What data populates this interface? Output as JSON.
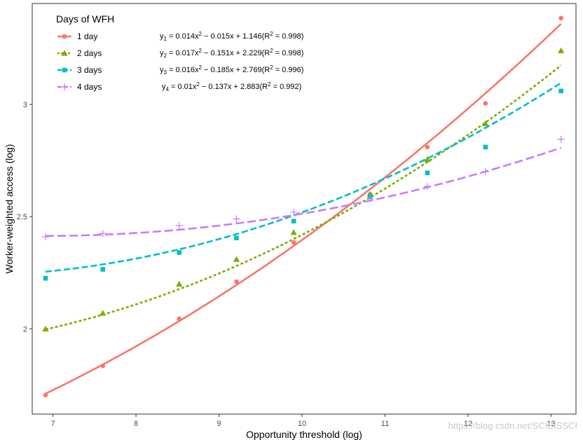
{
  "chart_data": {
    "type": "scatter",
    "title": "",
    "xlabel": "Opportunity threshold (log)",
    "ylabel": "Worker-weighted access (log)",
    "xlim": [
      6.75,
      13.3
    ],
    "ylim": [
      1.62,
      3.45
    ],
    "x_ticks": [
      7,
      8,
      9,
      10,
      11,
      12,
      13
    ],
    "y_ticks": [
      2,
      2.5,
      3
    ],
    "grid": false,
    "legend_title": "Days of WFH",
    "legend_position": "top-left",
    "x": [
      6.91,
      7.6,
      8.52,
      9.21,
      9.9,
      10.82,
      11.51,
      12.21,
      13.12
    ],
    "series": [
      {
        "name": "1 day",
        "color": "#F8766D",
        "marker": "circle",
        "line_style": "solid",
        "values": [
          1.705,
          1.835,
          2.045,
          2.21,
          2.385,
          2.6,
          2.81,
          3.005,
          3.385
        ],
        "fit": {
          "a": 0.014,
          "b": -0.015,
          "c": 1.146,
          "r2": 0.998,
          "label": "y",
          "sub": "1"
        }
      },
      {
        "name": "2 days",
        "color": "#7CAE00",
        "marker": "triangle",
        "line_style": "dotted",
        "values": [
          2.0,
          2.07,
          2.2,
          2.31,
          2.43,
          2.6,
          2.755,
          2.915,
          3.24
        ],
        "fit": {
          "a": 0.017,
          "b": -0.151,
          "c": 2.229,
          "r2": 0.998,
          "label": "y",
          "sub": "2"
        }
      },
      {
        "name": "3 days",
        "color": "#00BFC4",
        "marker": "square",
        "line_style": "dashed",
        "values": [
          2.225,
          2.265,
          2.34,
          2.405,
          2.48,
          2.59,
          2.695,
          2.81,
          3.06
        ],
        "fit": {
          "a": 0.016,
          "b": -0.185,
          "c": 2.769,
          "r2": 0.996,
          "label": "y",
          "sub": "3"
        }
      },
      {
        "name": "4 days",
        "color": "#C77CFF",
        "marker": "plus",
        "line_style": "longdash",
        "values": [
          2.41,
          2.425,
          2.46,
          2.49,
          2.52,
          2.58,
          2.635,
          2.7,
          2.845
        ],
        "fit": {
          "a": 0.01,
          "b": -0.137,
          "c": 2.883,
          "r2": 0.992,
          "label": "y",
          "sub": "4"
        }
      }
    ],
    "equations": [
      {
        "label": "y",
        "sub": "1",
        "body": " = 0.014x",
        "sup": "2",
        "rest": " − 0.015x + 1.146(R",
        "sup2": "2",
        "tail": " = 0.998)"
      },
      {
        "label": "y",
        "sub": "2",
        "body": " = 0.017x",
        "sup": "2",
        "rest": " − 0.151x + 2.229(R",
        "sup2": "2",
        "tail": " = 0.998)"
      },
      {
        "label": "y",
        "sub": "3",
        "body": " = 0.016x",
        "sup": "2",
        "rest": " − 0.185x + 2.769(R",
        "sup2": "2",
        "tail": " = 0.996)"
      },
      {
        "label": "y",
        "sub": "4",
        "body": " = 0.01x",
        "sup": "2",
        "rest": " − 0.137x + 2.883(R",
        "sup2": "2",
        "tail": " = 0.992)"
      }
    ],
    "watermark": "https://blog.csdn.net/SCIBISSCI"
  }
}
